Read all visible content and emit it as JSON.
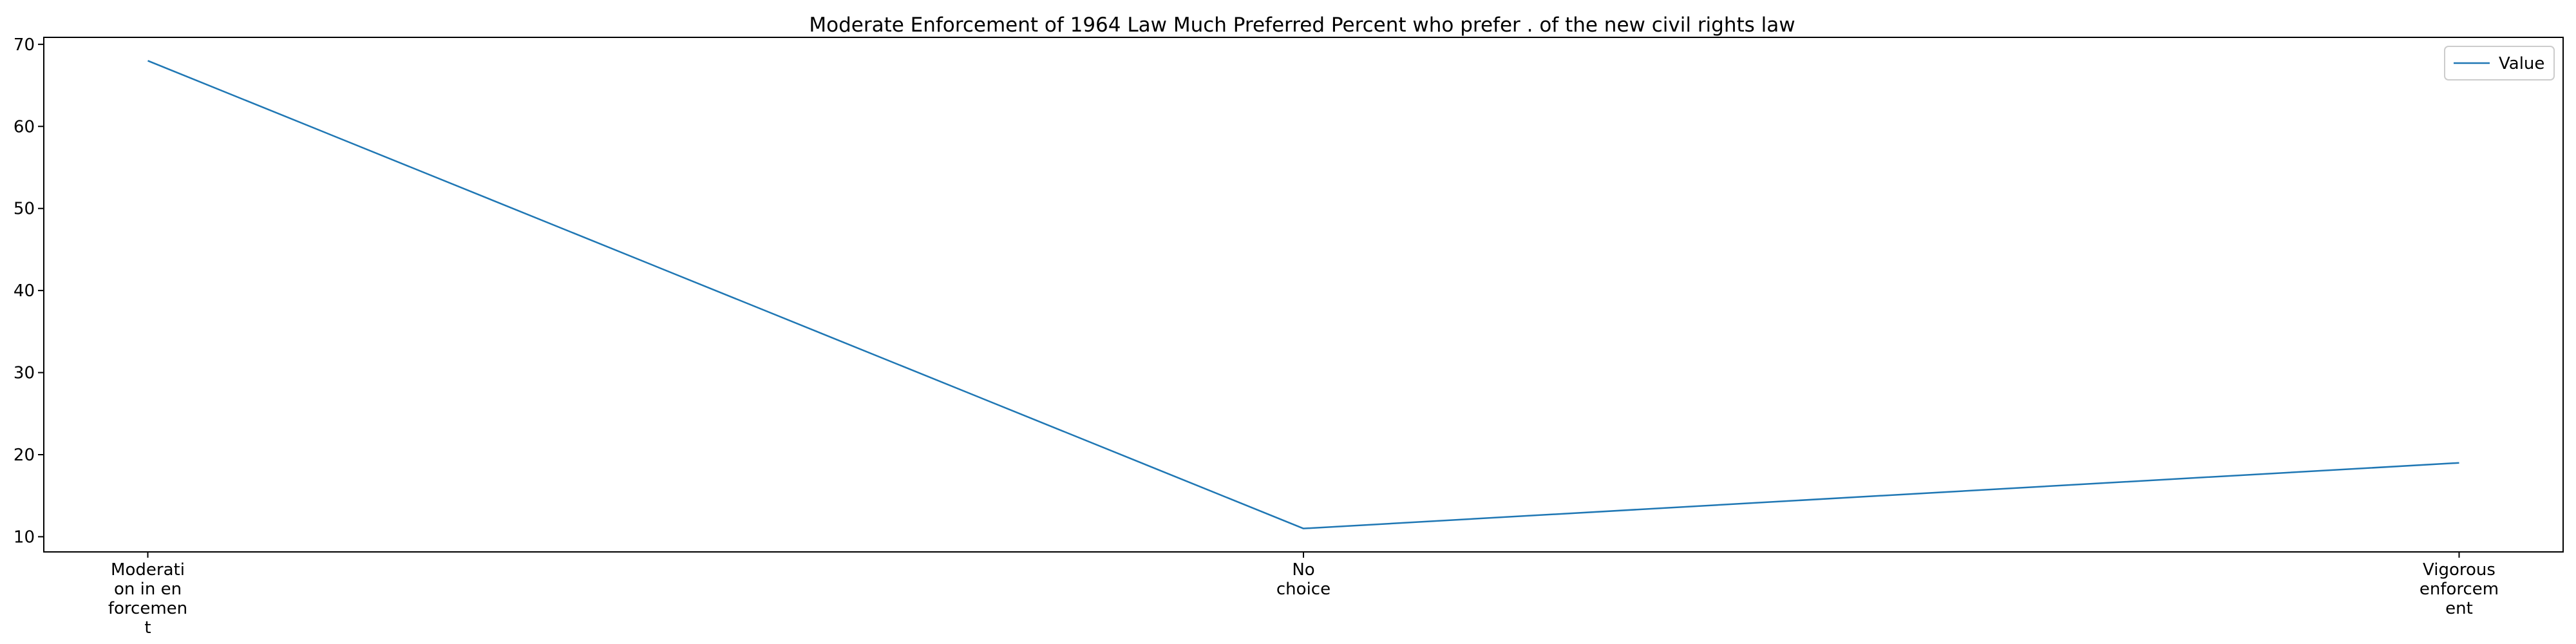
{
  "chart_data": {
    "type": "line",
    "title": "Moderate Enforcement of 1964 Law Much Preferred Percent who prefer . of the new civil rights law",
    "xlabel": "",
    "ylabel": "",
    "categories": [
      [
        "Moderati",
        "on in en",
        "forcemen",
        "t"
      ],
      [
        "No",
        "choice"
      ],
      [
        "Vigorous",
        "enforcem",
        "ent"
      ]
    ],
    "series": [
      {
        "name": "Value",
        "values": [
          68,
          11,
          19
        ],
        "color": "#1f77b4"
      }
    ],
    "ylim": [
      8.15,
      70.85
    ],
    "yticks": [
      10,
      20,
      30,
      40,
      50,
      60,
      70
    ],
    "grid": false,
    "legend_position": "top-right"
  }
}
